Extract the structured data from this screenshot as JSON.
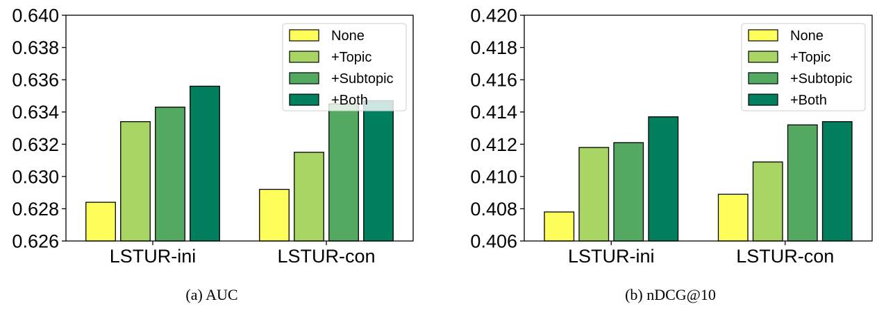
{
  "chart_data": [
    {
      "type": "bar",
      "caption": "(a) AUC",
      "categories": [
        "LSTUR-ini",
        "LSTUR-con"
      ],
      "ylim": [
        0.626,
        0.64
      ],
      "yticks": [
        "0.626",
        "0.628",
        "0.630",
        "0.632",
        "0.634",
        "0.636",
        "0.638",
        "0.640"
      ],
      "legend_position": "upper-right",
      "grid": false,
      "series": [
        {
          "name": "None",
          "color": "#ffff5c",
          "values": [
            0.6284,
            0.6292
          ]
        },
        {
          "name": "+Topic",
          "color": "#a9d564",
          "values": [
            0.6334,
            0.6315
          ]
        },
        {
          "name": "+Subtopic",
          "color": "#54a962",
          "values": [
            0.6343,
            0.6345
          ]
        },
        {
          "name": "+Both",
          "color": "#017f5f",
          "values": [
            0.6356,
            0.6347
          ]
        }
      ]
    },
    {
      "type": "bar",
      "caption": "(b) nDCG@10",
      "categories": [
        "LSTUR-ini",
        "LSTUR-con"
      ],
      "ylim": [
        0.406,
        0.42
      ],
      "yticks": [
        "0.406",
        "0.408",
        "0.410",
        "0.412",
        "0.414",
        "0.416",
        "0.418",
        "0.420"
      ],
      "legend_position": "upper-right",
      "grid": false,
      "series": [
        {
          "name": "None",
          "color": "#ffff5c",
          "values": [
            0.4078,
            0.4089
          ]
        },
        {
          "name": "+Topic",
          "color": "#a9d564",
          "values": [
            0.4118,
            0.4109
          ]
        },
        {
          "name": "+Subtopic",
          "color": "#54a962",
          "values": [
            0.4121,
            0.4132
          ]
        },
        {
          "name": "+Both",
          "color": "#017f5f",
          "values": [
            0.4137,
            0.4134
          ]
        }
      ]
    }
  ]
}
